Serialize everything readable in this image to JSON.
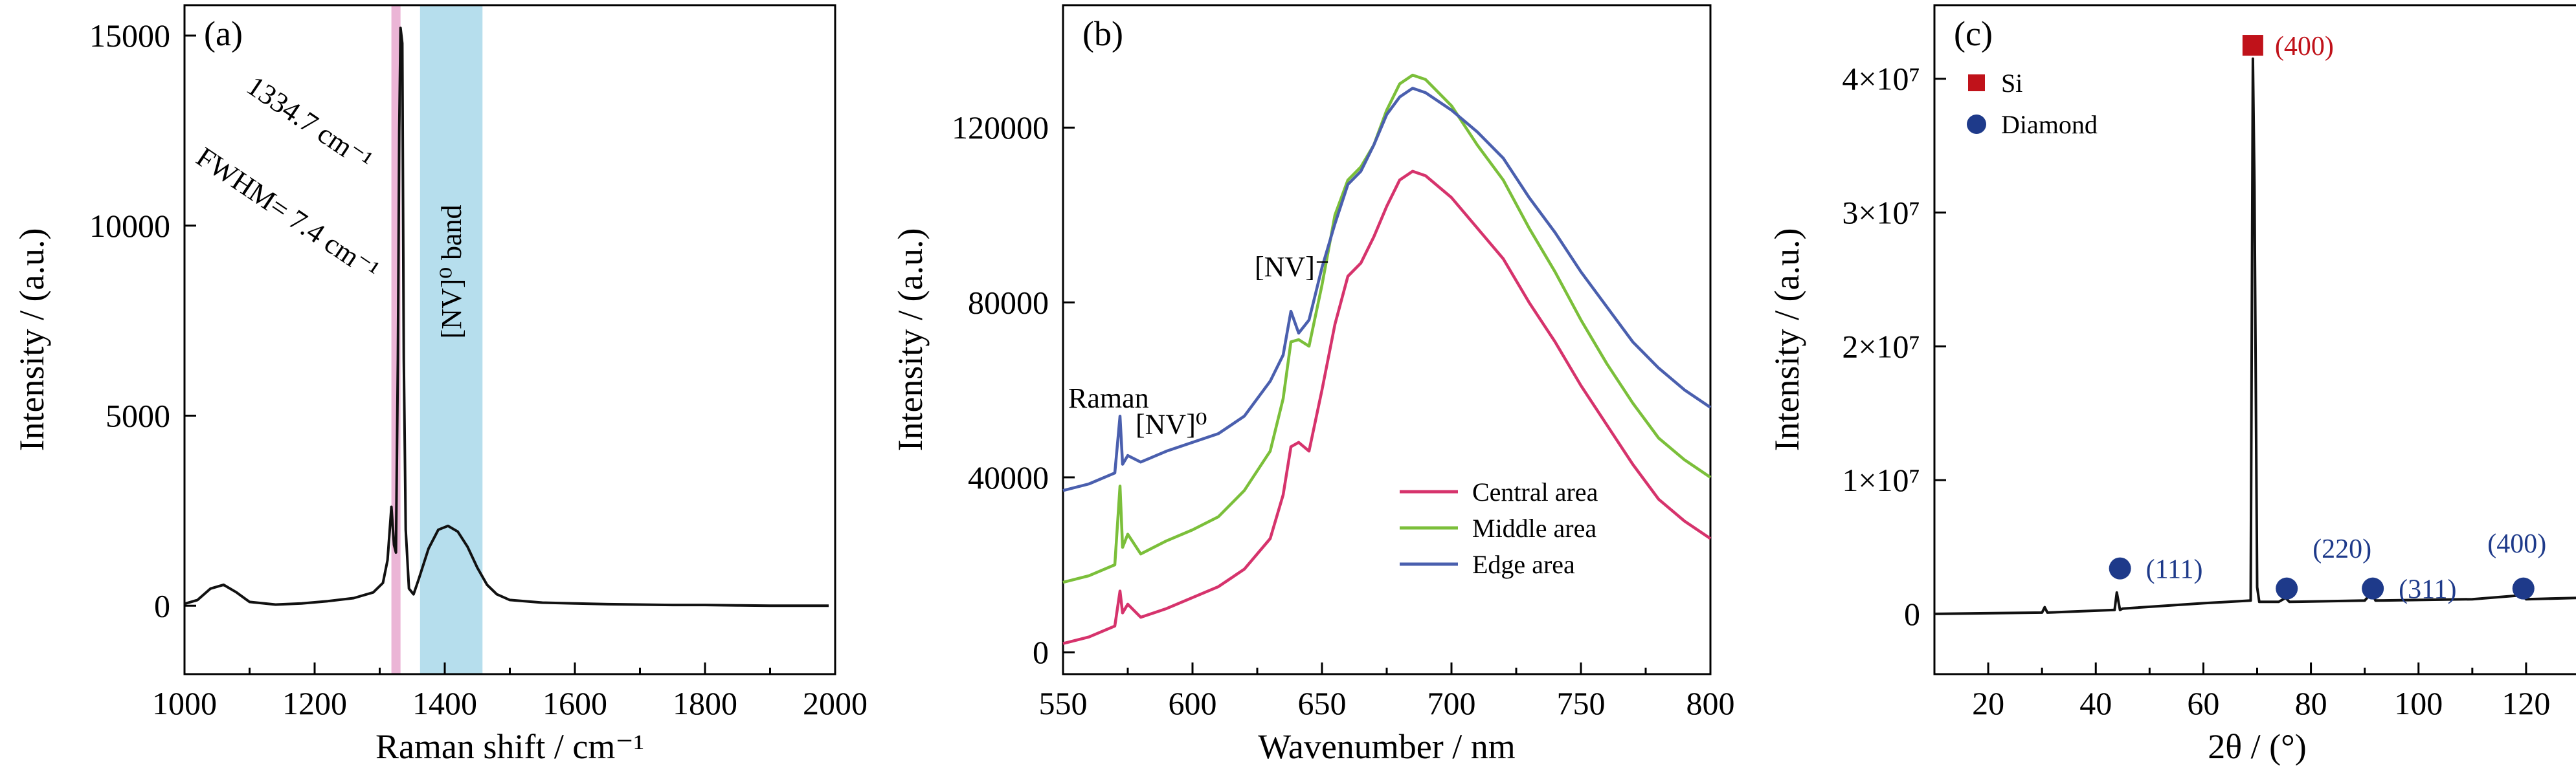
{
  "chart_data": [
    {
      "panel": "(a)",
      "type": "line",
      "xlabel": "Raman shift / cm⁻¹",
      "ylabel": "Intensity / (a.u.)",
      "xlim": [
        1000,
        2000
      ],
      "ylim": [
        -1800,
        15800
      ],
      "xticks": [
        1000,
        1200,
        1400,
        1600,
        1800,
        2000
      ],
      "yticks": [
        0,
        5000,
        10000,
        15000
      ],
      "x": [
        1000,
        1020,
        1040,
        1060,
        1080,
        1100,
        1140,
        1180,
        1220,
        1260,
        1290,
        1305,
        1312,
        1318,
        1322,
        1325,
        1328,
        1330,
        1332,
        1334.7,
        1337,
        1340,
        1345,
        1352,
        1360,
        1375,
        1390,
        1405,
        1420,
        1435,
        1450,
        1465,
        1480,
        1500,
        1550,
        1600,
        1650,
        1700,
        1750,
        1800,
        1850,
        1900,
        1950,
        1990
      ],
      "y": [
        50,
        150,
        450,
        550,
        350,
        100,
        30,
        60,
        120,
        200,
        350,
        600,
        1200,
        2600,
        1600,
        1400,
        6500,
        12500,
        15200,
        14800,
        6500,
        2000,
        450,
        300,
        700,
        1500,
        2000,
        2100,
        1950,
        1550,
        1000,
        550,
        300,
        150,
        80,
        60,
        40,
        30,
        20,
        20,
        10,
        0,
        0,
        0
      ],
      "bands": [
        {
          "label": "",
          "x": [
            1318,
            1332
          ],
          "color": "#e8a8cf"
        },
        {
          "label": "[NV]⁰ band",
          "x": [
            1362,
            1458
          ],
          "color": "#a9d8ea"
        }
      ],
      "annotations": [
        "1334.7 cm⁻¹",
        "FWHM= 7.4 cm⁻¹",
        "[NV]⁰ band"
      ]
    },
    {
      "panel": "(b)",
      "type": "line",
      "xlabel": "Wavenumber / nm",
      "ylabel": "Intensity / (a.u.)",
      "xlim": [
        550,
        800
      ],
      "ylim": [
        -5000,
        148000
      ],
      "xticks": [
        550,
        600,
        650,
        700,
        750,
        800
      ],
      "yticks": [
        0,
        40000,
        80000,
        120000
      ],
      "x": [
        550,
        560,
        570,
        572,
        573,
        575,
        580,
        590,
        600,
        610,
        620,
        630,
        635,
        638,
        641,
        645,
        650,
        655,
        660,
        665,
        670,
        675,
        680,
        685,
        690,
        700,
        710,
        720,
        730,
        740,
        750,
        760,
        770,
        780,
        790,
        800
      ],
      "series": [
        {
          "name": "Central area",
          "color": "#d6336c",
          "y": [
            2000,
            3500,
            6000,
            14000,
            9000,
            11000,
            8000,
            10000,
            12500,
            15000,
            19000,
            26000,
            36000,
            47000,
            48000,
            46000,
            60000,
            75000,
            86000,
            89000,
            95000,
            102000,
            108000,
            110000,
            109000,
            104000,
            97000,
            90000,
            80000,
            71000,
            61000,
            52000,
            43000,
            35000,
            30000,
            26000
          ]
        },
        {
          "name": "Middle area",
          "color": "#7bbf3a",
          "y": [
            16000,
            17500,
            20000,
            38000,
            24000,
            27000,
            22500,
            25500,
            28000,
            31000,
            37000,
            46000,
            58000,
            71000,
            71500,
            70000,
            84000,
            100000,
            108000,
            111000,
            116000,
            124000,
            130000,
            132000,
            131000,
            125000,
            116000,
            108000,
            97000,
            87000,
            76000,
            66000,
            57000,
            49000,
            44000,
            40000
          ]
        },
        {
          "name": "Edge area",
          "color": "#4a5fae",
          "y": [
            37000,
            38500,
            41000,
            54000,
            43000,
            45000,
            43500,
            46000,
            48000,
            50000,
            54000,
            62000,
            68000,
            78000,
            73000,
            76000,
            88000,
            98000,
            107000,
            110000,
            116000,
            123000,
            127000,
            129000,
            128000,
            124000,
            119000,
            113000,
            104000,
            96000,
            87000,
            79000,
            71000,
            65000,
            60000,
            56000
          ]
        }
      ],
      "annotations": [
        "Raman",
        "[NV]⁰",
        "[NV]⁻"
      ],
      "legend_position": "bottom-right"
    },
    {
      "panel": "(c)",
      "type": "line",
      "xlabel": "2θ / (°)",
      "ylabel": "Intensity / (a.u.)",
      "xlim": [
        10,
        130
      ],
      "ylim": [
        -4500000,
        45500000
      ],
      "xticks": [
        20,
        40,
        60,
        80,
        100,
        120
      ],
      "yticks": [
        0,
        10000000,
        20000000,
        30000000,
        40000000
      ],
      "ytick_labels": [
        "0",
        "1×10⁷",
        "2×10⁷",
        "3×10⁷",
        "4×10⁷"
      ],
      "x": [
        10,
        30,
        30.5,
        31,
        43.5,
        43.9,
        44.5,
        45,
        60,
        68.8,
        69.2,
        69.5,
        70,
        70.4,
        74,
        75.3,
        76,
        90,
        91.3,
        92,
        110,
        119.3,
        120,
        130
      ],
      "y": [
        0,
        100000,
        500000,
        100000,
        300000,
        1600000,
        300000,
        400000,
        800000,
        1000000,
        41500000,
        32000000,
        2000000,
        900000,
        900000,
        1200000,
        900000,
        1000000,
        1600000,
        1000000,
        1100000,
        1400000,
        1100000,
        1200000
      ],
      "peaks": [
        {
          "phase": "Diamond",
          "label": "(111)",
          "x": 44.5
        },
        {
          "phase": "Si",
          "label": "(400)",
          "x": 69.2
        },
        {
          "phase": "Diamond",
          "label": "(220)",
          "x": 75.5
        },
        {
          "phase": "Diamond",
          "label": "(311)",
          "x": 91.5
        },
        {
          "phase": "Diamond",
          "label": "(400)",
          "x": 119.5
        }
      ],
      "legend": [
        {
          "label": "Si",
          "marker": "square",
          "color": "#c0121a"
        },
        {
          "label": "Diamond",
          "marker": "circle",
          "color": "#1e3a8a"
        }
      ]
    }
  ]
}
